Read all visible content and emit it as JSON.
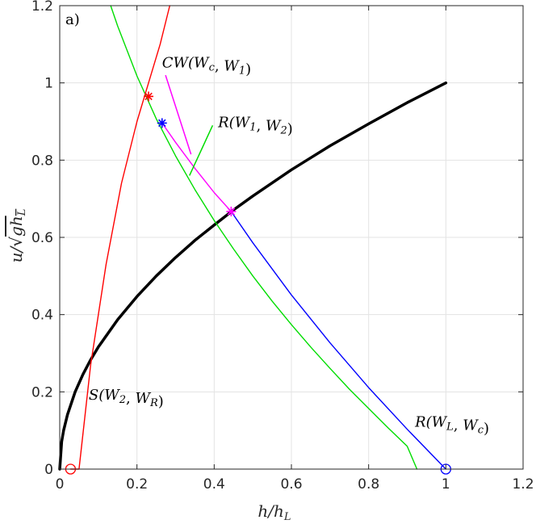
{
  "chart_data": {
    "type": "line",
    "panel_label": "a)",
    "xlabel": "h/h_L",
    "ylabel": "u/√(gh_L)",
    "xlim": [
      0,
      1.2
    ],
    "ylim": [
      0,
      1.2
    ],
    "xticks": [
      0,
      0.2,
      0.4,
      0.6,
      0.8,
      1,
      1.2
    ],
    "yticks": [
      0,
      0.2,
      0.4,
      0.6,
      0.8,
      1,
      1.2
    ],
    "xtick_labels": [
      "0",
      "0.2",
      "0.4",
      "0.6",
      "0.8",
      "1",
      "1.2"
    ],
    "ytick_labels": [
      "0",
      "0.2",
      "0.4",
      "0.6",
      "0.8",
      "1",
      "1.2"
    ],
    "grid": true,
    "series": [
      {
        "color": "#000000",
        "x": [
          0.0,
          0.005,
          0.01,
          0.02,
          0.04,
          0.06,
          0.08,
          0.1,
          0.15,
          0.2,
          0.25,
          0.3,
          0.35,
          0.4,
          0.45,
          0.5,
          0.6,
          0.7,
          0.8,
          0.9,
          1.0
        ],
        "y": [
          0.0,
          0.071,
          0.1,
          0.141,
          0.2,
          0.245,
          0.283,
          0.316,
          0.387,
          0.447,
          0.5,
          0.548,
          0.592,
          0.632,
          0.671,
          0.707,
          0.775,
          0.837,
          0.894,
          0.949,
          1.0
        ]
      },
      {
        "color": "#0000ff",
        "x": [
          0.444,
          0.5,
          0.6,
          0.7,
          0.8,
          0.9,
          1.0
        ],
        "y": [
          0.667,
          0.586,
          0.451,
          0.327,
          0.211,
          0.103,
          0.0
        ]
      },
      {
        "color": "#ff00ff",
        "x": [
          0.265,
          0.3,
          0.35,
          0.4,
          0.444
        ],
        "y": [
          0.896,
          0.846,
          0.779,
          0.716,
          0.667
        ]
      },
      {
        "color": "#00dd00",
        "x": [
          0.132,
          0.15,
          0.2,
          0.25,
          0.3,
          0.35,
          0.4,
          0.45,
          0.5,
          0.55,
          0.6,
          0.65,
          0.7,
          0.75,
          0.8,
          0.85,
          0.9,
          0.925
        ],
        "y": [
          1.2,
          1.147,
          1.018,
          0.907,
          0.811,
          0.724,
          0.644,
          0.57,
          0.5,
          0.435,
          0.374,
          0.316,
          0.261,
          0.207,
          0.157,
          0.107,
          0.059,
          0.0
        ]
      },
      {
        "color": "#ff0000",
        "x": [
          0.028,
          0.05,
          0.08,
          0.12,
          0.16,
          0.2,
          0.23,
          0.26,
          0.285
        ],
        "y": [
          0.0,
          0.0,
          0.27,
          0.53,
          0.74,
          0.9,
          1.0,
          1.1,
          1.2
        ]
      }
    ],
    "markers": [
      {
        "symbol": "circle",
        "color": "#ff0000",
        "x": 0.028,
        "y": 0.0
      },
      {
        "symbol": "circle",
        "color": "#0000ff",
        "x": 1.0,
        "y": 0.0
      },
      {
        "symbol": "star",
        "color": "#ff0000",
        "x": 0.23,
        "y": 0.965
      },
      {
        "symbol": "star",
        "color": "#0000ff",
        "x": 0.265,
        "y": 0.896
      },
      {
        "symbol": "star",
        "color": "#ff00ff",
        "x": 0.444,
        "y": 0.667
      }
    ],
    "annotations": [
      {
        "text": "CW(W_c, W_1)",
        "x": 0.265,
        "y": 1.04,
        "pointer_color": "#ff00ff",
        "pointer": [
          0.274,
          1.02,
          0.34,
          0.815
        ]
      },
      {
        "text": "R(W_1, W_2)",
        "x": 0.41,
        "y": 0.885,
        "pointer_color": "#00dd00",
        "pointer": [
          0.396,
          0.89,
          0.336,
          0.76
        ]
      },
      {
        "text": "S(W_2, W_R)",
        "x": 0.075,
        "y": 0.18,
        "pointer_color": null,
        "pointer": null
      },
      {
        "text": "R(W_L, W_c)",
        "x": 0.92,
        "y": 0.11,
        "pointer_color": null,
        "pointer": null
      }
    ]
  }
}
